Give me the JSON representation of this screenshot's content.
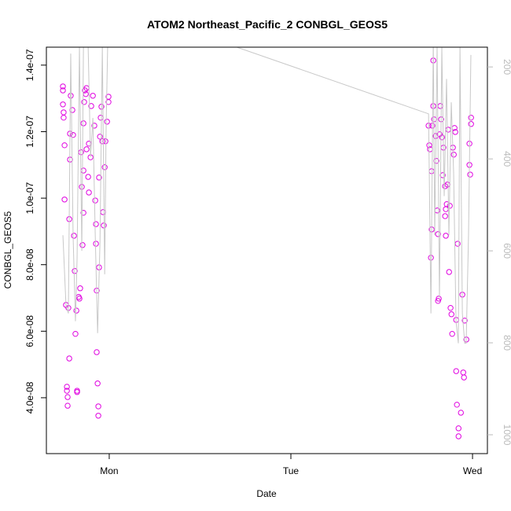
{
  "chart_data": {
    "type": "scatter",
    "title": "ATOM2 Northeast_Pacific_2 CONBGL_GEOS5",
    "xlabel": "Date",
    "ylabel": "CONBGL_GEOS5",
    "xlim": [
      -0.346,
      2.082
    ],
    "xticks": [
      {
        "value": 0,
        "label": "Mon"
      },
      {
        "value": 1,
        "label": "Tue"
      },
      {
        "value": 2,
        "label": "Wed"
      }
    ],
    "ylim": [
      2.32e-08,
      1.454e-07
    ],
    "yticks": [
      {
        "value": 4e-08,
        "label": "4.0e-08"
      },
      {
        "value": 6e-08,
        "label": "6.0e-08"
      },
      {
        "value": 8e-08,
        "label": "8.0e-08"
      },
      {
        "value": 1e-07,
        "label": "1.0e-07"
      },
      {
        "value": 1.2e-07,
        "label": "1.2e-07"
      },
      {
        "value": 1.4e-07,
        "label": "1.4e-07"
      }
    ],
    "y2lim": [
      1041,
      157
    ],
    "y2ticks": [
      200,
      400,
      600,
      800,
      1000
    ],
    "series": [
      {
        "type": "points",
        "color": "#e000e0",
        "x": [
          -0.255,
          -0.255,
          -0.255,
          -0.251,
          -0.251,
          -0.246,
          -0.246,
          -0.238,
          -0.233,
          -0.233,
          -0.229,
          -0.229,
          -0.225,
          -0.22,
          -0.22,
          -0.216,
          -0.216,
          -0.212,
          -0.203,
          -0.199,
          -0.194,
          -0.19,
          -0.186,
          -0.181,
          -0.177,
          -0.177,
          -0.168,
          -0.164,
          -0.16,
          -0.155,
          -0.151,
          -0.147,
          -0.142,
          -0.142,
          -0.142,
          -0.138,
          -0.134,
          -0.129,
          -0.125,
          -0.125,
          -0.116,
          -0.112,
          -0.112,
          -0.103,
          -0.099,
          -0.09,
          -0.082,
          -0.077,
          -0.073,
          -0.073,
          -0.069,
          -0.069,
          -0.064,
          -0.06,
          -0.06,
          -0.056,
          -0.056,
          -0.051,
          -0.047,
          -0.043,
          -0.038,
          -0.034,
          -0.03,
          -0.025,
          -0.021,
          -0.012,
          -0.004,
          -0.004,
          1.758,
          1.762,
          1.766,
          1.771,
          1.775,
          1.775,
          1.779,
          1.784,
          1.784,
          1.788,
          1.797,
          1.801,
          1.806,
          1.81,
          1.81,
          1.814,
          1.819,
          1.823,
          1.827,
          1.832,
          1.836,
          1.84,
          1.849,
          1.849,
          1.853,
          1.853,
          1.858,
          1.862,
          1.866,
          1.871,
          1.875,
          1.879,
          1.884,
          1.888,
          1.892,
          1.897,
          1.901,
          1.905,
          1.91,
          1.91,
          1.914,
          1.918,
          1.923,
          1.923,
          1.936,
          1.944,
          1.949,
          1.953,
          1.957,
          1.966,
          1.983,
          1.983,
          1.987,
          1.992,
          1.992
        ],
        "y": [
          1.336e-07,
          1.324e-07,
          1.282e-07,
          1.258e-07,
          1.242e-07,
          1.159e-07,
          9.96e-08,
          6.79e-08,
          4.33e-08,
          4.21e-08,
          4.02e-08,
          3.76e-08,
          6.7e-08,
          9.37e-08,
          5.18e-08,
          1.194e-07,
          1.116e-07,
          1.308e-07,
          1.265e-07,
          1.19e-07,
          8.87e-08,
          7.81e-08,
          5.92e-08,
          6.62e-08,
          4.21e-08,
          4.17e-08,
          7.03e-08,
          6.98e-08,
          7.29e-08,
          1.138e-07,
          1.034e-07,
          8.59e-08,
          1.225e-07,
          1.083e-07,
          9.56e-08,
          1.289e-07,
          1.324e-07,
          1.313e-07,
          1.331e-07,
          1.147e-07,
          1.064e-07,
          1.164e-07,
          1.017e-07,
          1.123e-07,
          1.277e-07,
          1.308e-07,
          1.218e-07,
          9.93e-08,
          9.22e-08,
          8.63e-08,
          7.22e-08,
          5.37e-08,
          4.43e-08,
          3.74e-08,
          3.46e-08,
          7.92e-08,
          1.062e-07,
          1.185e-07,
          1.242e-07,
          1.275e-07,
          1.171e-07,
          9.58e-08,
          9.18e-08,
          1.093e-07,
          1.171e-07,
          1.23e-07,
          1.305e-07,
          1.289e-07,
          1.218e-07,
          1.159e-07,
          1.147e-07,
          8.21e-08,
          9.06e-08,
          1.081e-07,
          1.218e-07,
          1.277e-07,
          1.414e-07,
          1.237e-07,
          1.187e-07,
          1.112e-07,
          9.63e-08,
          8.92e-08,
          6.91e-08,
          6.98e-08,
          1.192e-07,
          1.277e-07,
          1.237e-07,
          1.183e-07,
          1.069e-07,
          1.152e-07,
          1.036e-07,
          9.46e-08,
          9.67e-08,
          8.87e-08,
          9.82e-08,
          1.041e-07,
          1.206e-07,
          7.78e-08,
          9.77e-08,
          6.7e-08,
          6.51e-08,
          5.92e-08,
          1.152e-07,
          1.131e-07,
          1.211e-07,
          1.199e-07,
          6.34e-08,
          4.8e-08,
          3.79e-08,
          8.63e-08,
          3.08e-08,
          2.84e-08,
          3.55e-08,
          7.1e-08,
          4.76e-08,
          4.61e-08,
          6.32e-08,
          5.75e-08,
          1.164e-07,
          1.1e-07,
          1.071e-07,
          1.242e-07,
          1.223e-07
        ]
      },
      {
        "type": "line",
        "axis": "y2",
        "color": "#c8c8c8",
        "x": [
          -0.255,
          -0.238,
          -0.225,
          -0.212,
          -0.199,
          -0.186,
          -0.177,
          -0.164,
          -0.151,
          -0.142,
          -0.134,
          -0.116,
          -0.103,
          -0.09,
          -0.077,
          -0.064,
          -0.051,
          -0.038,
          -0.025,
          -0.017,
          -0.004,
          1.758,
          1.771,
          1.784,
          1.792,
          1.805,
          1.818,
          1.831,
          1.844,
          1.857,
          1.87,
          1.883,
          1.896,
          1.909,
          1.922,
          1.931,
          1.944,
          1.957,
          1.965,
          1.978,
          1.991
        ],
        "y": [
          566,
          719,
          736,
          171,
          566,
          753,
          617,
          157,
          600,
          157,
          140,
          157,
          396,
          311,
          566,
          779,
          583,
          157,
          651,
          328,
          60,
          302,
          736,
          140,
          566,
          157,
          702,
          157,
          481,
          226,
          566,
          277,
          430,
          753,
          801,
          157,
          736,
          801,
          801,
          566,
          174
        ]
      }
    ]
  }
}
